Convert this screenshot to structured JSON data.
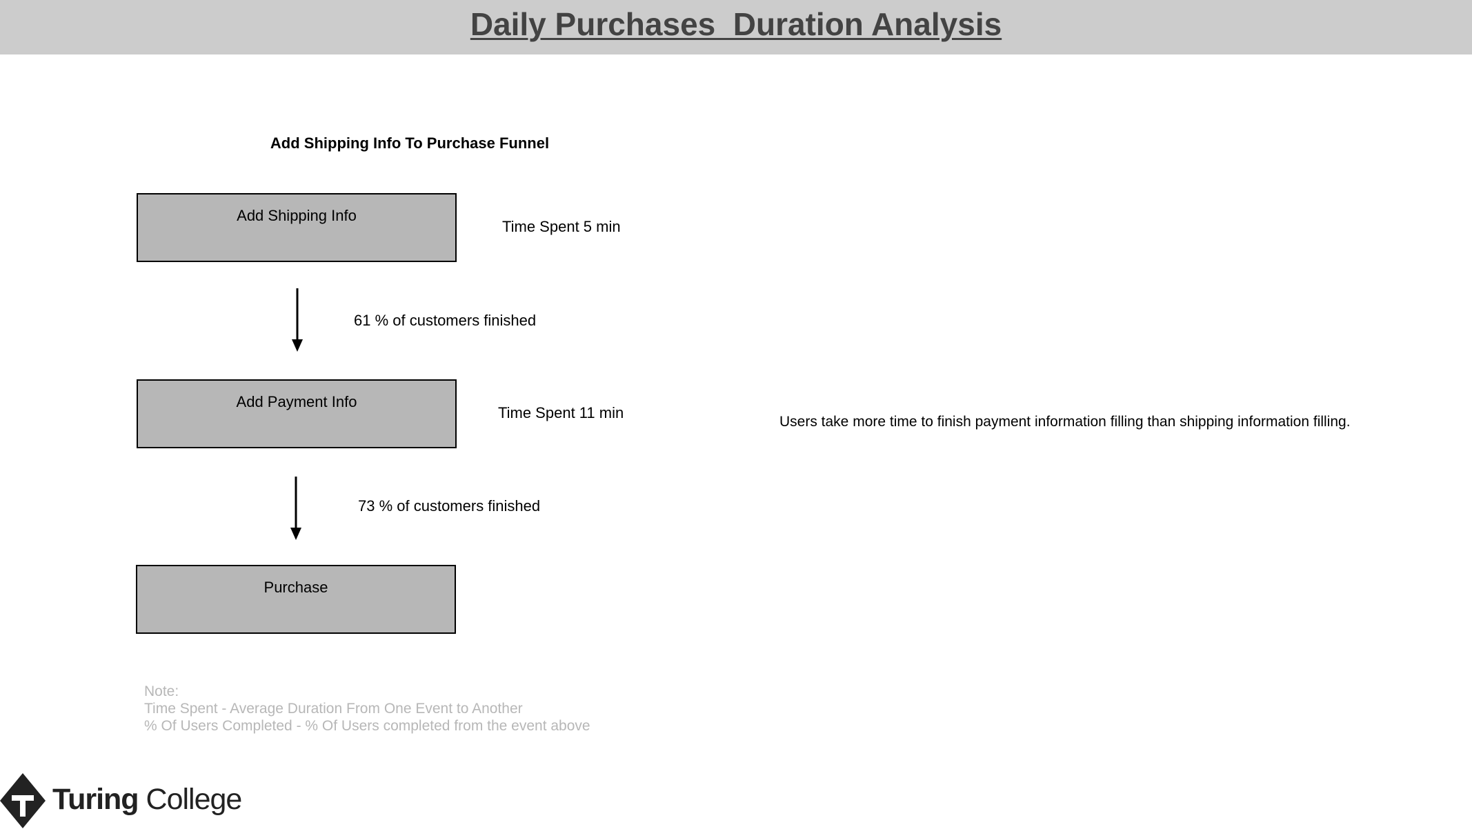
{
  "header": {
    "title": "Daily Purchases  Duration Analysis"
  },
  "funnel": {
    "title": "Add Shipping Info To Purchase Funnel",
    "steps": [
      {
        "label": "Add Shipping Info",
        "time_spent": "Time Spent 5 min"
      },
      {
        "label": "Add Payment Info",
        "time_spent": "Time Spent 11 min"
      },
      {
        "label": "Purchase"
      }
    ],
    "transitions": [
      {
        "label": "61 % of customers finished"
      },
      {
        "label": "73 % of customers finished"
      }
    ]
  },
  "insight": "Users take more time to finish payment information filling than shipping information filling.",
  "note": {
    "heading": "Note:",
    "lines": [
      "Time Spent - Average Duration From One Event to Another",
      "% Of Users Completed - % Of Users completed from the event above"
    ]
  },
  "logo": {
    "word1": "Turing",
    "word2": "College"
  },
  "colors": {
    "header_band": "#cccccc",
    "title_text": "#434343",
    "box_fill": "#b7b7b7",
    "note_text": "#b7b7b7"
  }
}
